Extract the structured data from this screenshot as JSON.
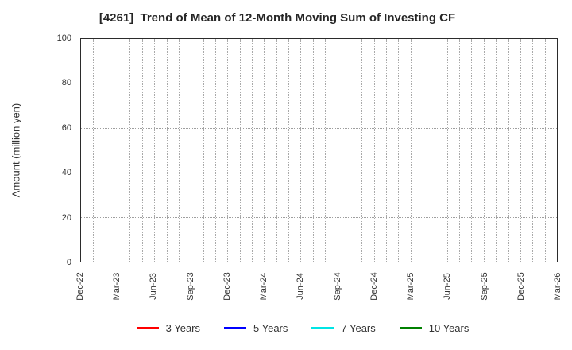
{
  "chart_data": {
    "type": "line",
    "title": "[4261]  Trend of Mean of 12-Month Moving Sum of Investing CF",
    "xlabel": "",
    "ylabel": "Amount (million yen)",
    "ylim": [
      0,
      100
    ],
    "yticks": [
      0,
      20,
      40,
      60,
      80,
      100
    ],
    "x_range": [
      "Dec-22",
      "Mar-26"
    ],
    "x_tick_labels": [
      "Dec-22",
      "Mar-23",
      "Jun-23",
      "Sep-23",
      "Dec-23",
      "Mar-24",
      "Jun-24",
      "Sep-24",
      "Dec-24",
      "Mar-25",
      "Jun-25",
      "Sep-25",
      "Dec-25",
      "Mar-26"
    ],
    "months_total": 39,
    "months_per_label": 3,
    "grid": true,
    "legend_position": "bottom",
    "series": [
      {
        "name": "3 Years",
        "color": "#ff0000",
        "values": []
      },
      {
        "name": "5 Years",
        "color": "#0000ff",
        "values": []
      },
      {
        "name": "7 Years",
        "color": "#00e5e5",
        "values": []
      },
      {
        "name": "10 Years",
        "color": "#008000",
        "values": []
      }
    ]
  }
}
